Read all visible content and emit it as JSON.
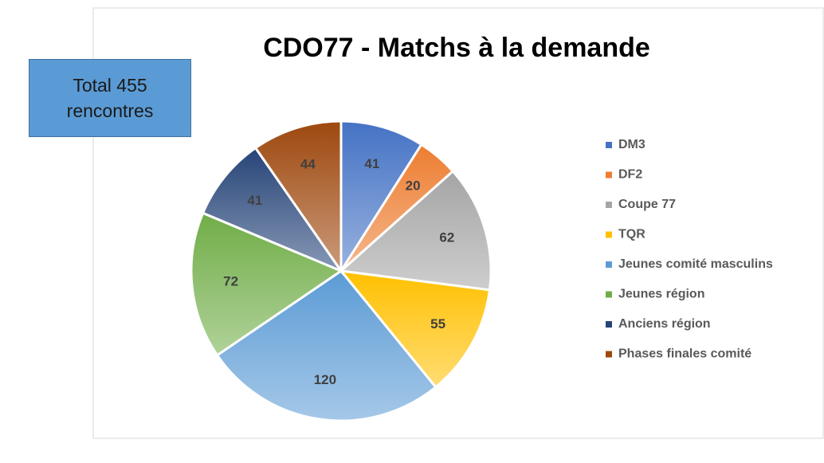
{
  "chart_data": {
    "type": "pie",
    "title": "CDO77 - Matchs à la demande",
    "annotation": "Total 455 rencontres",
    "categories": [
      "DM3",
      "DF2",
      "Coupe 77",
      "TQR",
      "Jeunes comité masculins",
      "Jeunes région",
      "Anciens région",
      "Phases finales comité"
    ],
    "values": [
      41,
      20,
      62,
      55,
      120,
      72,
      41,
      44
    ],
    "colors": [
      "#4472c4",
      "#ed7d31",
      "#a5a5a5",
      "#ffc000",
      "#5b9bd5",
      "#70ad47",
      "#264478",
      "#9e480e"
    ],
    "legend": "right"
  }
}
